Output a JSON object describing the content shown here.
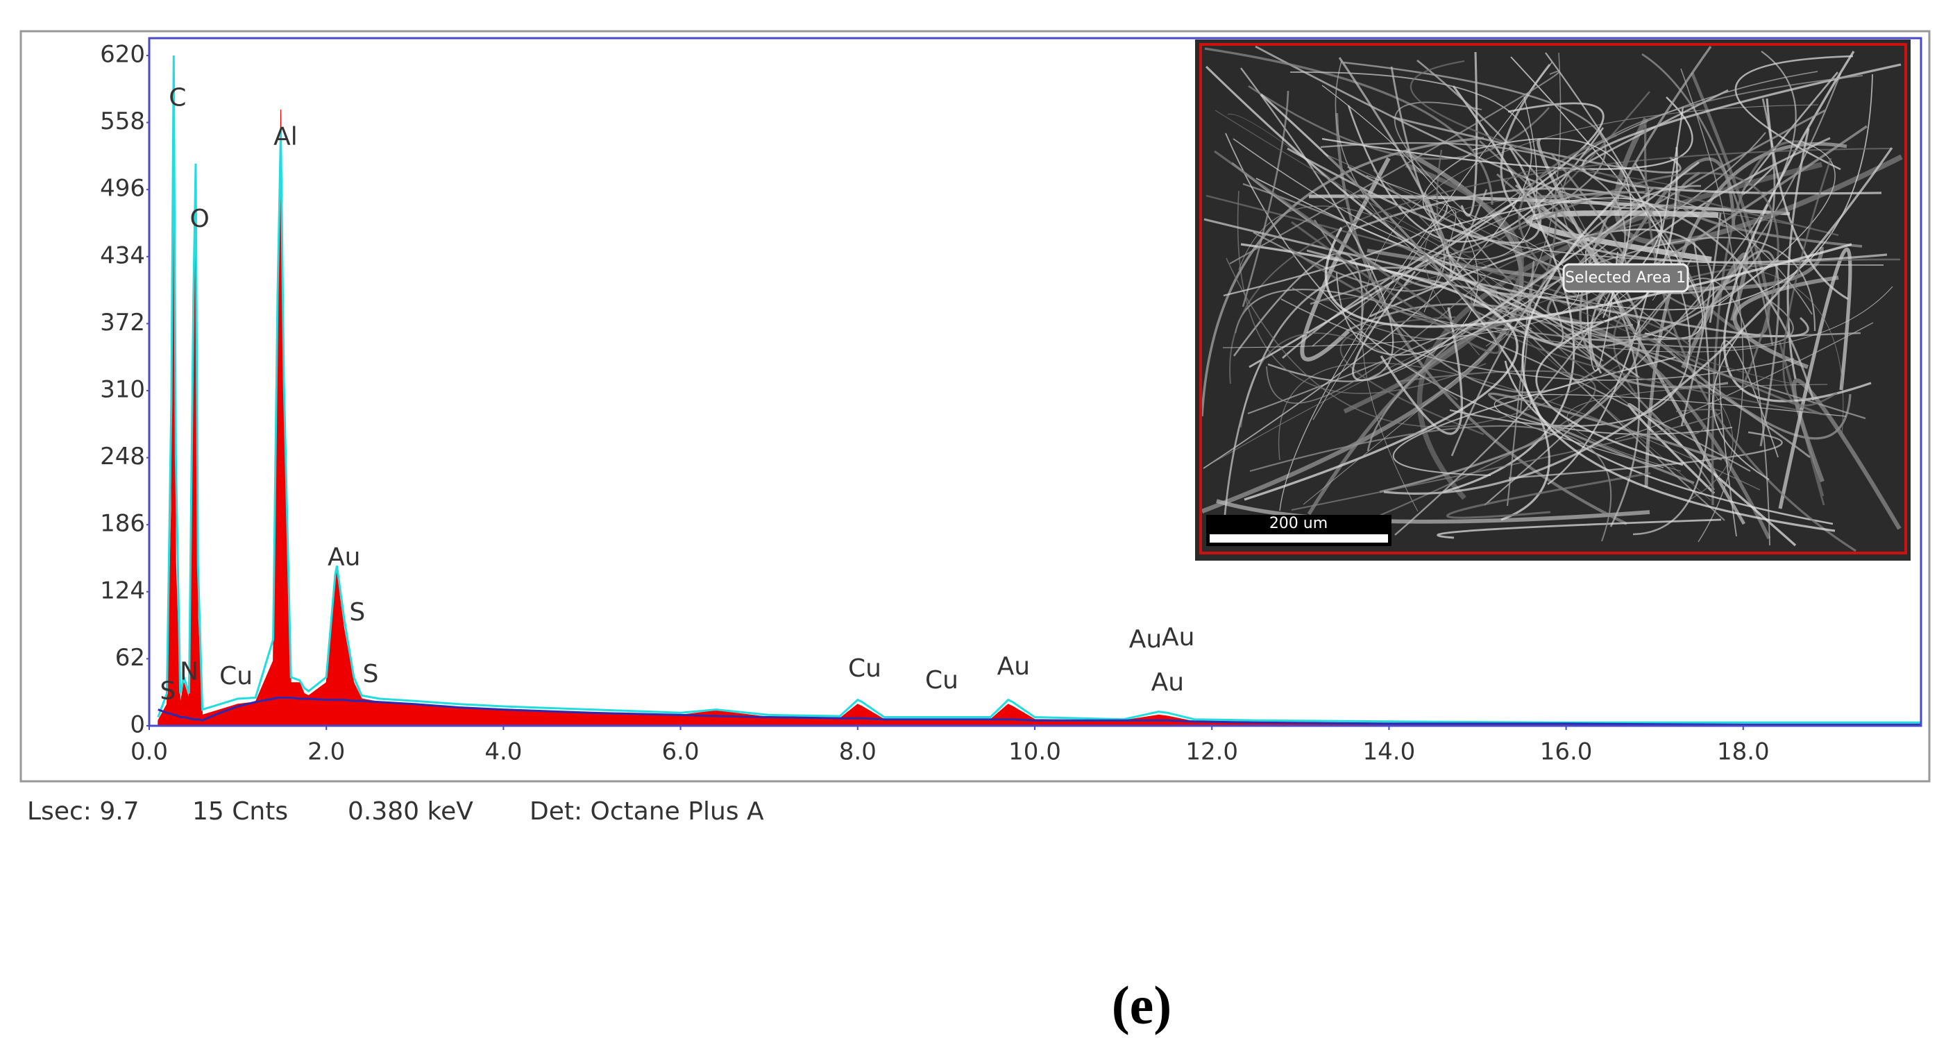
{
  "chart_data": {
    "type": "spectrum",
    "x": [
      0.1,
      0.2,
      0.25,
      0.277,
      0.3,
      0.35,
      0.392,
      0.45,
      0.5,
      0.525,
      0.55,
      0.6,
      0.8,
      1.0,
      1.2,
      1.4,
      1.45,
      1.486,
      1.52,
      1.6,
      1.7,
      1.75,
      1.8,
      2.0,
      2.1,
      2.12,
      2.15,
      2.2,
      2.31,
      2.4,
      2.6,
      3.0,
      3.5,
      4.0,
      5.0,
      6.0,
      6.4,
      7.0,
      7.8,
      8.0,
      8.05,
      8.3,
      8.9,
      9.5,
      9.7,
      9.75,
      10.0,
      11.0,
      11.4,
      11.5,
      11.8,
      12.5,
      14.0,
      16.0,
      18.0,
      20.0
    ],
    "series": [
      {
        "style": "area",
        "color": "#ee0000",
        "values": [
          5,
          20,
          200,
          600,
          150,
          20,
          40,
          25,
          300,
          480,
          100,
          10,
          15,
          20,
          22,
          60,
          350,
          570,
          300,
          40,
          40,
          30,
          28,
          40,
          130,
          145,
          120,
          90,
          40,
          25,
          22,
          20,
          17,
          15,
          12,
          10,
          14,
          8,
          7,
          20,
          18,
          6,
          6,
          6,
          20,
          18,
          6,
          5,
          10,
          9,
          4,
          3,
          2,
          2,
          1,
          1
        ]
      },
      {
        "style": "line",
        "color": "#22dddd",
        "values": [
          8,
          30,
          300,
          620,
          250,
          30,
          45,
          30,
          400,
          520,
          150,
          15,
          20,
          25,
          26,
          80,
          400,
          550,
          320,
          45,
          42,
          35,
          32,
          45,
          140,
          148,
          130,
          100,
          45,
          28,
          25,
          23,
          20,
          18,
          15,
          12,
          15,
          10,
          9,
          24,
          22,
          8,
          8,
          8,
          24,
          22,
          8,
          6,
          13,
          12,
          6,
          5,
          4,
          3,
          3,
          3
        ]
      },
      {
        "style": "line",
        "color": "#2a2ab0",
        "values": [
          15,
          12,
          11,
          10,
          10,
          8,
          8,
          7,
          6,
          6,
          6,
          5,
          12,
          18,
          22,
          25,
          26,
          26,
          26,
          26,
          25,
          25,
          25,
          24,
          24,
          24,
          24,
          24,
          23,
          23,
          22,
          20,
          17,
          15,
          12,
          10,
          9,
          8,
          7,
          7,
          7,
          6,
          6,
          6,
          6,
          6,
          5,
          5,
          5,
          5,
          4,
          3,
          2,
          2,
          1,
          1
        ]
      }
    ],
    "xlim": [
      0,
      20
    ],
    "xticks": [
      {
        "value": 0,
        "label": "0.0"
      },
      {
        "value": 2,
        "label": "2.0"
      },
      {
        "value": 4,
        "label": "4.0"
      },
      {
        "value": 6,
        "label": "6.0"
      },
      {
        "value": 8,
        "label": "8.0"
      },
      {
        "value": 10,
        "label": "10.0"
      },
      {
        "value": 12,
        "label": "12.0"
      },
      {
        "value": 14,
        "label": "14.0"
      },
      {
        "value": 16,
        "label": "16.0"
      },
      {
        "value": 18,
        "label": "18.0"
      }
    ],
    "ylim": [
      0,
      620
    ],
    "yticks": [
      0,
      62,
      124,
      186,
      248,
      310,
      372,
      434,
      496,
      558,
      620
    ],
    "annotations": [
      {
        "text": "C",
        "x": 0.32,
        "y": 580
      },
      {
        "text": "O",
        "x": 0.57,
        "y": 468
      },
      {
        "text": "Al",
        "x": 1.54,
        "y": 544
      },
      {
        "text": "Au",
        "x": 2.2,
        "y": 155
      },
      {
        "text": "S",
        "x": 2.35,
        "y": 104
      },
      {
        "text": "N",
        "x": 0.45,
        "y": 49
      },
      {
        "text": "S",
        "x": 0.21,
        "y": 31
      },
      {
        "text": "Cu",
        "x": 0.98,
        "y": 45
      },
      {
        "text": "S",
        "x": 2.5,
        "y": 47
      },
      {
        "text": "Cu",
        "x": 8.08,
        "y": 52
      },
      {
        "text": "Cu",
        "x": 8.95,
        "y": 41
      },
      {
        "text": "Au",
        "x": 9.76,
        "y": 54
      },
      {
        "text": "Au",
        "x": 11.25,
        "y": 79
      },
      {
        "text": "Au",
        "x": 11.62,
        "y": 81
      },
      {
        "text": "Au",
        "x": 11.5,
        "y": 39
      }
    ]
  },
  "inset": {
    "label": "Selected Area 1",
    "scale_bar": "200 um"
  },
  "status_bar": [
    "Lsec: 9.7",
    "15 Cnts",
    "0.380 keV",
    "Det: Octane Plus A"
  ],
  "caption": "(e)"
}
